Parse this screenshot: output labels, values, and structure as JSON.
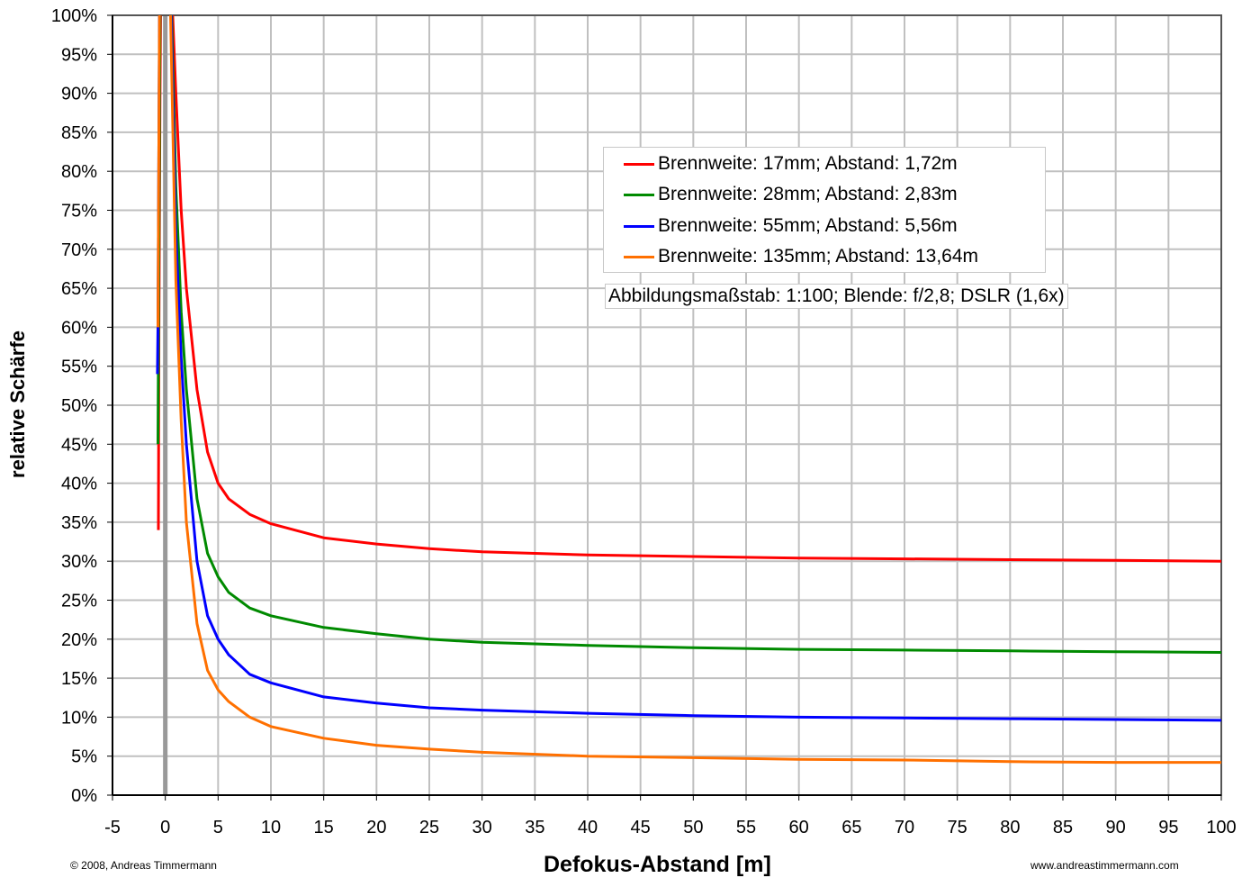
{
  "chart_data": {
    "type": "line",
    "title": "",
    "xlabel": "Defokus-Abstand [m]",
    "ylabel": "relative Schärfe",
    "xlim": [
      -5,
      100
    ],
    "ylim": [
      0,
      100
    ],
    "grid": true,
    "legend_placement": "top-right",
    "x_ticks": [
      "-5",
      "0",
      "5",
      "10",
      "15",
      "20",
      "25",
      "30",
      "35",
      "40",
      "45",
      "50",
      "55",
      "60",
      "65",
      "70",
      "75",
      "80",
      "85",
      "90",
      "95",
      "100"
    ],
    "y_ticks": [
      "0%",
      "5%",
      "10%",
      "15%",
      "20%",
      "25%",
      "30%",
      "35%",
      "40%",
      "45%",
      "50%",
      "55%",
      "60%",
      "65%",
      "70%",
      "75%",
      "80%",
      "85%",
      "90%",
      "95%",
      "100%"
    ],
    "annotation": "Abbildungsmaßstab: 1:100; Blende: f/2,8; DSLR (1,6x)",
    "series": [
      {
        "name": "Brennweite: 17mm; Abstand: 1,72m",
        "color": "#ff0000",
        "left": [
          [
            -0.65,
            34
          ],
          [
            -0.6,
            60
          ],
          [
            -0.5,
            90
          ],
          [
            -0.45,
            100
          ]
        ],
        "right": [
          [
            0.7,
            100
          ],
          [
            1,
            90
          ],
          [
            1.5,
            75
          ],
          [
            2,
            65
          ],
          [
            3,
            52
          ],
          [
            4,
            44
          ],
          [
            5,
            40
          ],
          [
            6,
            38
          ],
          [
            8,
            36
          ],
          [
            10,
            34.8
          ],
          [
            15,
            33
          ],
          [
            20,
            32.2
          ],
          [
            25,
            31.6
          ],
          [
            30,
            31.2
          ],
          [
            40,
            30.8
          ],
          [
            50,
            30.6
          ],
          [
            60,
            30.4
          ],
          [
            70,
            30.3
          ],
          [
            80,
            30.2
          ],
          [
            90,
            30.1
          ],
          [
            100,
            30
          ]
        ]
      },
      {
        "name": "Brennweite: 28mm; Abstand: 2,83m",
        "color": "#008a00",
        "left": [
          [
            -0.7,
            45
          ],
          [
            -0.6,
            70
          ],
          [
            -0.5,
            100
          ]
        ],
        "right": [
          [
            0.6,
            100
          ],
          [
            1,
            78
          ],
          [
            1.5,
            62
          ],
          [
            2,
            52
          ],
          [
            3,
            38
          ],
          [
            4,
            31
          ],
          [
            5,
            28
          ],
          [
            6,
            26
          ],
          [
            8,
            24
          ],
          [
            10,
            23
          ],
          [
            15,
            21.5
          ],
          [
            20,
            20.7
          ],
          [
            25,
            20
          ],
          [
            30,
            19.6
          ],
          [
            40,
            19.2
          ],
          [
            50,
            18.9
          ],
          [
            60,
            18.7
          ],
          [
            70,
            18.6
          ],
          [
            80,
            18.5
          ],
          [
            90,
            18.4
          ],
          [
            100,
            18.3
          ]
        ]
      },
      {
        "name": "Brennweite: 55mm; Abstand: 5,56m",
        "color": "#0000ff",
        "left": [
          [
            -0.75,
            54
          ],
          [
            -0.7,
            60
          ],
          [
            -0.55,
            100
          ]
        ],
        "right": [
          [
            0.55,
            100
          ],
          [
            1,
            72
          ],
          [
            1.5,
            56
          ],
          [
            2,
            45
          ],
          [
            3,
            30
          ],
          [
            4,
            23
          ],
          [
            5,
            20
          ],
          [
            6,
            18
          ],
          [
            8,
            15.5
          ],
          [
            10,
            14.4
          ],
          [
            15,
            12.6
          ],
          [
            20,
            11.8
          ],
          [
            25,
            11.2
          ],
          [
            30,
            10.9
          ],
          [
            40,
            10.5
          ],
          [
            50,
            10.2
          ],
          [
            60,
            10
          ],
          [
            70,
            9.9
          ],
          [
            80,
            9.8
          ],
          [
            90,
            9.7
          ],
          [
            100,
            9.6
          ]
        ]
      },
      {
        "name": "Brennweite: 135mm; Abstand: 13,64m",
        "color": "#ff7000",
        "left": [
          [
            -0.7,
            60
          ],
          [
            -0.55,
            100
          ]
        ],
        "right": [
          [
            0.5,
            100
          ],
          [
            1,
            66
          ],
          [
            1.5,
            48
          ],
          [
            2,
            35
          ],
          [
            3,
            22
          ],
          [
            4,
            16
          ],
          [
            5,
            13.5
          ],
          [
            6,
            12
          ],
          [
            8,
            10
          ],
          [
            10,
            8.8
          ],
          [
            15,
            7.3
          ],
          [
            20,
            6.4
          ],
          [
            25,
            5.9
          ],
          [
            30,
            5.5
          ],
          [
            40,
            5
          ],
          [
            50,
            4.8
          ],
          [
            60,
            4.6
          ],
          [
            70,
            4.5
          ],
          [
            80,
            4.3
          ],
          [
            90,
            4.2
          ],
          [
            100,
            4.2
          ]
        ]
      }
    ]
  },
  "footer": {
    "copyright": "© 2008, Andreas Timmermann",
    "url": "www.andreastimmermann.com"
  }
}
